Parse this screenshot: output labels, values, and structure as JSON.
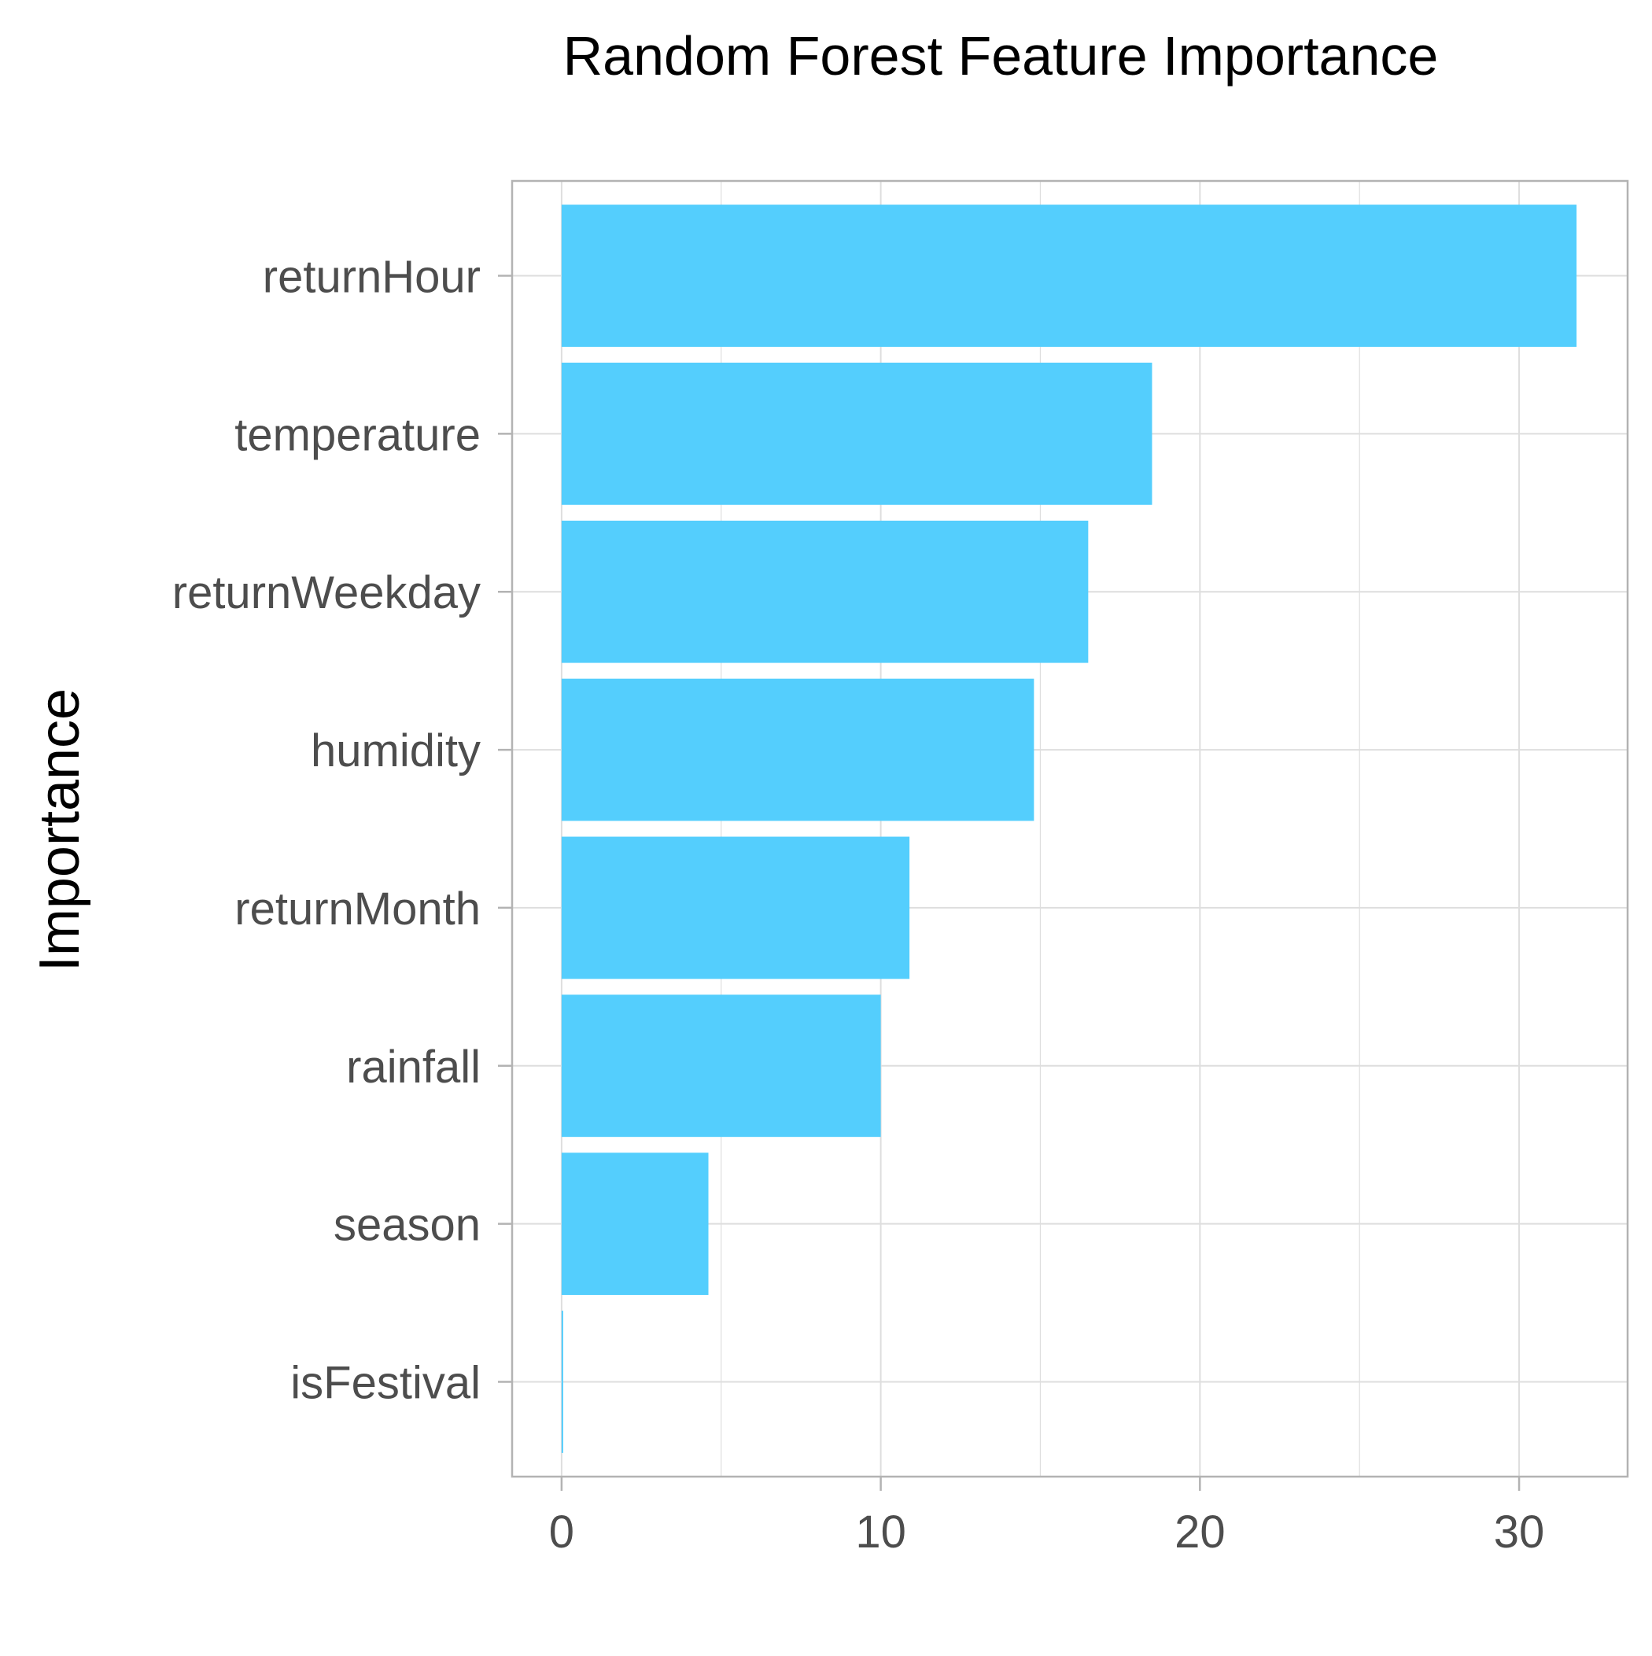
{
  "chart_data": {
    "type": "bar",
    "orientation": "horizontal",
    "title": "Random Forest Feature Importance",
    "xlabel": "",
    "ylabel": "Importance",
    "categories": [
      "returnHour",
      "temperature",
      "returnWeekday",
      "humidity",
      "returnMonth",
      "rainfall",
      "season",
      "isFestival"
    ],
    "values": [
      31.8,
      18.5,
      16.5,
      14.8,
      10.9,
      10.0,
      4.6,
      0.05
    ],
    "xlim": [
      -1.55,
      33.4
    ],
    "xticks": [
      0,
      10,
      20,
      30
    ],
    "xtick_labels": [
      "0",
      "10",
      "20",
      "30"
    ],
    "grid": true,
    "bar_color": "#54CEFD",
    "grid_color": "#DEDEDE",
    "panel_border_color": "#B3B3B3"
  }
}
